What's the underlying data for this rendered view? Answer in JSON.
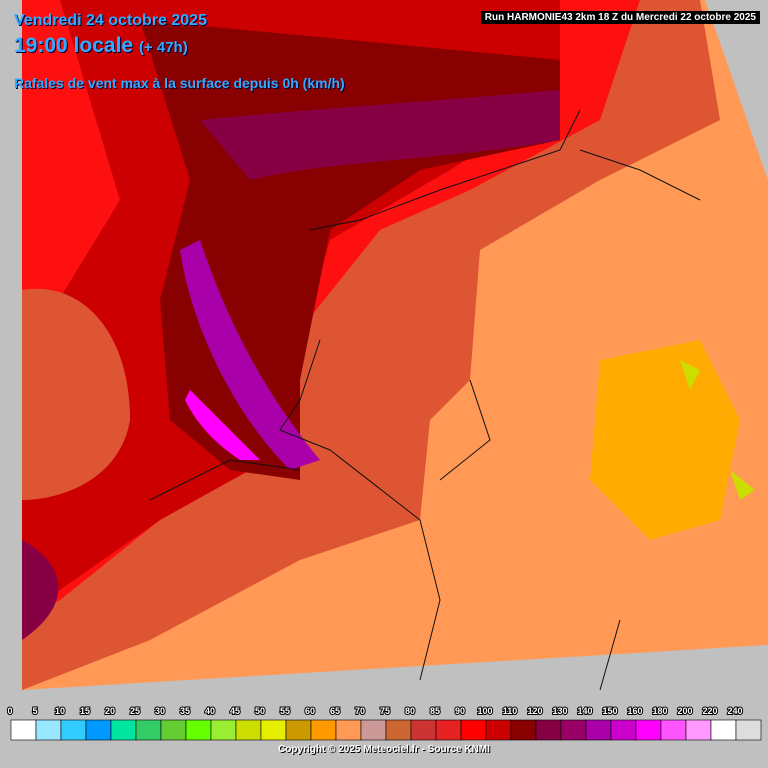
{
  "header": {
    "date": "Vendredi 24 octobre 2025",
    "time": "19:00 locale",
    "lead": "(+ 47h)",
    "parameter": "Rafales de vent max à la surface depuis 0h (km/h)"
  },
  "run": "Run HARMONIE43 2km 18 Z du Mercredi 22 octobre 2025",
  "legend": {
    "thresholds": [
      0,
      5,
      10,
      15,
      20,
      25,
      30,
      35,
      40,
      45,
      50,
      55,
      60,
      65,
      70,
      75,
      80,
      85,
      90,
      100,
      110,
      120,
      130,
      140,
      150,
      160,
      180,
      200,
      220,
      240
    ],
    "colors": [
      "#ffffff",
      "#99e6ff",
      "#33ccff",
      "#0099ff",
      "#00e6a0",
      "#33cc66",
      "#66cc33",
      "#66ff00",
      "#99ee33",
      "#ccdd00",
      "#e6ee00",
      "#cc9900",
      "#ff9900",
      "#ff9955",
      "#cc9999",
      "#cc6633",
      "#cc3333",
      "#e62222",
      "#ff0000",
      "#cc0000",
      "#880000",
      "#880044",
      "#990066",
      "#aa00aa",
      "#cc00cc",
      "#ff00ff",
      "#ff55ff",
      "#ff99ff",
      "#ffffff",
      "#dddddd"
    ]
  },
  "copyright": "Copyright © 2025 Meteociel.fr - Source KNMI"
}
